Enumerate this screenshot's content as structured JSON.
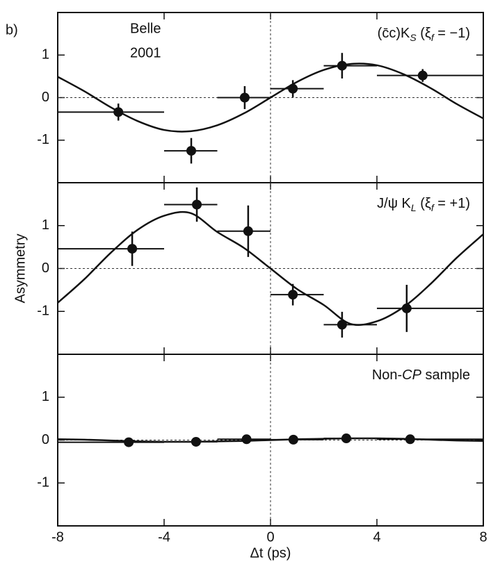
{
  "chart_data": [
    {
      "type": "scatter",
      "panel_label": "b)",
      "note": [
        "Belle",
        "2001"
      ],
      "annotation": [
        "(c̄c)K",
        "S",
        " (ξ",
        "f",
        " = −1)"
      ],
      "x": [
        -5.72,
        -2.98,
        -0.97,
        0.84,
        2.69,
        5.72
      ],
      "y": [
        -0.34,
        -1.25,
        0.0,
        0.21,
        0.75,
        0.52
      ],
      "x_low": [
        -8,
        -4,
        -2,
        0,
        2,
        4
      ],
      "x_high": [
        -4,
        -2,
        0,
        2,
        4,
        8
      ],
      "y_err": [
        0.2,
        0.3,
        0.27,
        0.2,
        0.3,
        0.15
      ],
      "fit": {
        "x": [
          -8,
          -7,
          -6,
          -5,
          -4,
          -3,
          -2,
          -1,
          0,
          1,
          2,
          3,
          4,
          5,
          6,
          7,
          8
        ],
        "y": [
          0.49,
          0.15,
          -0.23,
          -0.55,
          -0.76,
          -0.79,
          -0.65,
          -0.37,
          0,
          0.37,
          0.65,
          0.79,
          0.76,
          0.55,
          0.23,
          -0.15,
          -0.49
        ]
      },
      "color": "#111111",
      "xlim": [
        -8,
        8
      ],
      "xticks": [
        -8,
        -4,
        0,
        4,
        8
      ],
      "ylim": [
        -2,
        2
      ],
      "yticks": [
        -1,
        0,
        1
      ]
    },
    {
      "type": "scatter",
      "ylabel": "Asymmetry",
      "annotation": [
        "J/ψ K",
        "L",
        " (ξ",
        "f",
        " = +1)"
      ],
      "x": [
        -5.2,
        -2.77,
        -0.84,
        0.84,
        2.69,
        5.12
      ],
      "y": [
        0.46,
        1.49,
        0.87,
        -0.61,
        -1.31,
        -0.93
      ],
      "x_low": [
        -8,
        -4,
        -2,
        0,
        2,
        4
      ],
      "x_high": [
        -4,
        -2,
        0,
        2,
        4,
        8
      ],
      "y_err": [
        0.4,
        0.4,
        0.6,
        0.25,
        0.3,
        0.55
      ],
      "fit": {
        "x": [
          -8,
          -7,
          -6,
          -5,
          -4,
          -3,
          -2,
          -1,
          0,
          1,
          2,
          3,
          4,
          5,
          6,
          7,
          8
        ],
        "y": [
          -0.8,
          -0.25,
          0.37,
          0.9,
          1.23,
          1.29,
          0.85,
          0.48,
          0,
          -0.48,
          -0.85,
          -1.29,
          -1.23,
          -0.9,
          -0.37,
          0.25,
          0.8
        ]
      },
      "color": "#111111",
      "xlim": [
        -8,
        8
      ],
      "xticks": [
        -8,
        -4,
        0,
        4,
        8
      ],
      "ylim": [
        -2,
        2
      ],
      "yticks": [
        -1,
        0,
        1
      ]
    },
    {
      "type": "scatter",
      "xlabel": "Δt (ps)",
      "annotation": [
        "Non-",
        "CP",
        " sample"
      ],
      "x": [
        -5.33,
        -2.8,
        -0.9,
        0.86,
        2.85,
        5.25
      ],
      "y": [
        -0.05,
        -0.04,
        0.02,
        0.01,
        0.04,
        0.02
      ],
      "x_low": [
        -8,
        -4,
        -2,
        0,
        2,
        4
      ],
      "x_high": [
        -4,
        -2,
        0,
        2,
        4,
        8
      ],
      "y_err": [
        0.03,
        0.03,
        0.03,
        0.03,
        0.03,
        0.03
      ],
      "fit": {
        "x": [
          -8,
          -7,
          -6,
          -5,
          -4,
          -3,
          -2,
          -1,
          0,
          1,
          2,
          3,
          4,
          5,
          6,
          7,
          8
        ],
        "y": [
          0.02,
          0.01,
          -0.01,
          -0.03,
          -0.04,
          -0.04,
          -0.03,
          -0.02,
          0,
          0.02,
          0.03,
          0.04,
          0.04,
          0.03,
          0.01,
          -0.01,
          -0.02
        ]
      },
      "color": "#111111",
      "xlim": [
        -8,
        8
      ],
      "xticks": [
        -8,
        -4,
        0,
        4,
        8
      ],
      "ylim": [
        -2,
        2
      ],
      "yticks": [
        -1,
        0,
        1
      ]
    }
  ]
}
